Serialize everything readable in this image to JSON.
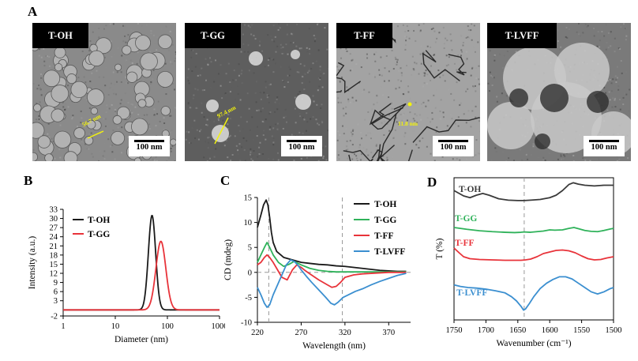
{
  "panels": {
    "a": "A",
    "b": "B",
    "c": "C",
    "d": "D"
  },
  "tem_images": [
    {
      "tag": "T-OH",
      "scale": "100 nm",
      "annotation": "56.7 nm",
      "texture": "particles"
    },
    {
      "tag": "T-GG",
      "scale": "100 nm",
      "annotation": "97.4 nm",
      "texture": "grainy"
    },
    {
      "tag": "T-FF",
      "scale": "100 nm",
      "annotation": "11.8 nm",
      "texture": "fibers"
    },
    {
      "tag": "T-LVFF",
      "scale": "100 nm",
      "annotation": "",
      "texture": "sheets"
    }
  ],
  "chart_data": [
    {
      "type": "line",
      "panel": "B",
      "xlabel": "Diameter (nm)",
      "ylabel": "Intensity (a.u.)",
      "xscale": "log",
      "xlim": [
        1,
        1000
      ],
      "ylim": [
        -2,
        33
      ],
      "xticks": [
        1,
        10,
        100,
        1000
      ],
      "yticks": [
        -2,
        3,
        6,
        9,
        12,
        15,
        18,
        21,
        24,
        27,
        30,
        33
      ],
      "legend": "top-left",
      "series": [
        {
          "name": "T-OH",
          "color": "#1a1a1a",
          "peak_x": 50.7,
          "peak_y": 31,
          "log_width": 0.07
        },
        {
          "name": "T-GG",
          "color": "#e8333a",
          "peak_x": 75,
          "peak_y": 22.5,
          "log_width": 0.095
        }
      ]
    },
    {
      "type": "line",
      "panel": "C",
      "xlabel": "Wavelength (nm)",
      "ylabel": "CD (mdeg)",
      "xlim": [
        220,
        395
      ],
      "ylim": [
        -10,
        15
      ],
      "xticks": [
        220,
        270,
        320,
        370
      ],
      "yticks": [
        -10,
        -5,
        0,
        5,
        10,
        15
      ],
      "vlines": [
        233,
        317
      ],
      "legend": "right",
      "series": [
        {
          "name": "T-OH",
          "color": "#1a1a1a",
          "x": [
            220,
            224,
            227,
            230,
            232,
            234,
            236,
            238,
            242,
            250,
            260,
            270,
            280,
            290,
            300,
            310,
            320,
            330,
            340,
            350,
            360,
            370,
            380,
            390
          ],
          "y": [
            9,
            11.5,
            13.5,
            14.5,
            13.5,
            11,
            8,
            6,
            4.2,
            3,
            2.5,
            2,
            1.8,
            1.6,
            1.5,
            1.3,
            1.2,
            1,
            0.8,
            0.6,
            0.4,
            0.3,
            0.2,
            0.2
          ]
        },
        {
          "name": "T-GG",
          "color": "#2fb25a",
          "x": [
            220,
            224,
            228,
            231,
            234,
            238,
            244,
            250,
            256,
            262,
            270,
            280,
            290,
            300,
            310,
            320,
            330,
            340,
            350,
            360,
            370,
            380,
            390
          ],
          "y": [
            2,
            3.5,
            5,
            6,
            5,
            3.5,
            2,
            1.2,
            1.6,
            2.2,
            1.5,
            0.8,
            0.4,
            0.2,
            0.1,
            0.1,
            0.1,
            0.1,
            0.1,
            0.1,
            0.1,
            0.1,
            0.1
          ]
        },
        {
          "name": "T-FF",
          "color": "#e8333a",
          "x": [
            220,
            224,
            228,
            231,
            234,
            238,
            243,
            248,
            254,
            260,
            265,
            270,
            275,
            280,
            290,
            300,
            305,
            310,
            315,
            320,
            330,
            340,
            350,
            360,
            370,
            380,
            390
          ],
          "y": [
            1.5,
            2,
            3,
            3.5,
            3,
            2,
            0.5,
            -1,
            -1.5,
            0.5,
            1.5,
            1,
            0.3,
            -0.3,
            -1.5,
            -2.5,
            -3,
            -2.8,
            -2,
            -1,
            -0.5,
            -0.3,
            -0.2,
            -0.1,
            0,
            0,
            0
          ]
        },
        {
          "name": "T-LVFF",
          "color": "#3b8fd0",
          "x": [
            220,
            224,
            228,
            231,
            234,
            238,
            243,
            248,
            253,
            258,
            262,
            266,
            270,
            276,
            282,
            290,
            298,
            304,
            308,
            312,
            318,
            324,
            332,
            340,
            350,
            360,
            370,
            380,
            390
          ],
          "y": [
            -3,
            -4.5,
            -6.2,
            -7,
            -6.5,
            -4.5,
            -2.5,
            -0.5,
            1.5,
            2.5,
            2.2,
            1.5,
            0.5,
            -0.8,
            -2,
            -3.5,
            -5,
            -6.2,
            -6.5,
            -6,
            -5,
            -4.5,
            -3.8,
            -3.3,
            -2.5,
            -1.8,
            -1.2,
            -0.6,
            -0.2
          ]
        }
      ]
    },
    {
      "type": "line",
      "panel": "D",
      "xlabel": "Wavenumber (cm⁻¹)",
      "ylabel": "T (%)",
      "xlim": [
        1750,
        1500
      ],
      "xticks": [
        1750,
        1700,
        1650,
        1600,
        1550,
        1500
      ],
      "vlines": [
        1640
      ],
      "series": [
        {
          "name": "T-OH",
          "color": "#3a3a3a",
          "x": [
            1750,
            1735,
            1725,
            1715,
            1705,
            1695,
            1680,
            1665,
            1650,
            1640,
            1630,
            1615,
            1600,
            1590,
            1580,
            1570,
            1563,
            1555,
            1545,
            1530,
            1515,
            1500
          ],
          "y": [
            0.75,
            0.6,
            0.55,
            0.62,
            0.67,
            0.62,
            0.52,
            0.48,
            0.47,
            0.47,
            0.48,
            0.5,
            0.55,
            0.62,
            0.75,
            0.92,
            0.97,
            0.93,
            0.9,
            0.88,
            0.9,
            0.9
          ]
        },
        {
          "name": "T-GG",
          "color": "#2fb25a",
          "x": [
            1750,
            1730,
            1710,
            1690,
            1670,
            1655,
            1645,
            1640,
            1630,
            1620,
            1610,
            1600,
            1592,
            1580,
            1570,
            1562,
            1555,
            1545,
            1535,
            1525,
            1515,
            1505,
            1500
          ],
          "y": [
            0.58,
            0.52,
            0.47,
            0.44,
            0.42,
            0.41,
            0.42,
            0.43,
            0.42,
            0.44,
            0.46,
            0.5,
            0.49,
            0.5,
            0.55,
            0.58,
            0.54,
            0.48,
            0.45,
            0.44,
            0.48,
            0.53,
            0.55
          ]
        },
        {
          "name": "T-FF",
          "color": "#e8333a",
          "x": [
            1750,
            1742,
            1735,
            1725,
            1710,
            1690,
            1670,
            1655,
            1645,
            1638,
            1630,
            1620,
            1610,
            1600,
            1590,
            1580,
            1570,
            1560,
            1550,
            1540,
            1530,
            1520,
            1510,
            1500
          ],
          "y": [
            0.72,
            0.6,
            0.5,
            0.45,
            0.43,
            0.42,
            0.41,
            0.41,
            0.41,
            0.42,
            0.44,
            0.5,
            0.58,
            0.62,
            0.66,
            0.67,
            0.65,
            0.6,
            0.52,
            0.45,
            0.42,
            0.43,
            0.47,
            0.5
          ]
        },
        {
          "name": "T-LVFF",
          "color": "#3b8fd0",
          "x": [
            1750,
            1740,
            1728,
            1715,
            1700,
            1685,
            1670,
            1660,
            1652,
            1645,
            1641,
            1638,
            1632,
            1625,
            1615,
            1605,
            1595,
            1585,
            1575,
            1565,
            1555,
            1545,
            1535,
            1525,
            1515,
            1505,
            1500
          ],
          "y": [
            0.55,
            0.52,
            0.5,
            0.49,
            0.47,
            0.44,
            0.4,
            0.33,
            0.25,
            0.15,
            0.08,
            0.1,
            0.2,
            0.33,
            0.48,
            0.58,
            0.65,
            0.7,
            0.7,
            0.66,
            0.58,
            0.5,
            0.42,
            0.38,
            0.42,
            0.48,
            0.5
          ]
        }
      ]
    }
  ]
}
